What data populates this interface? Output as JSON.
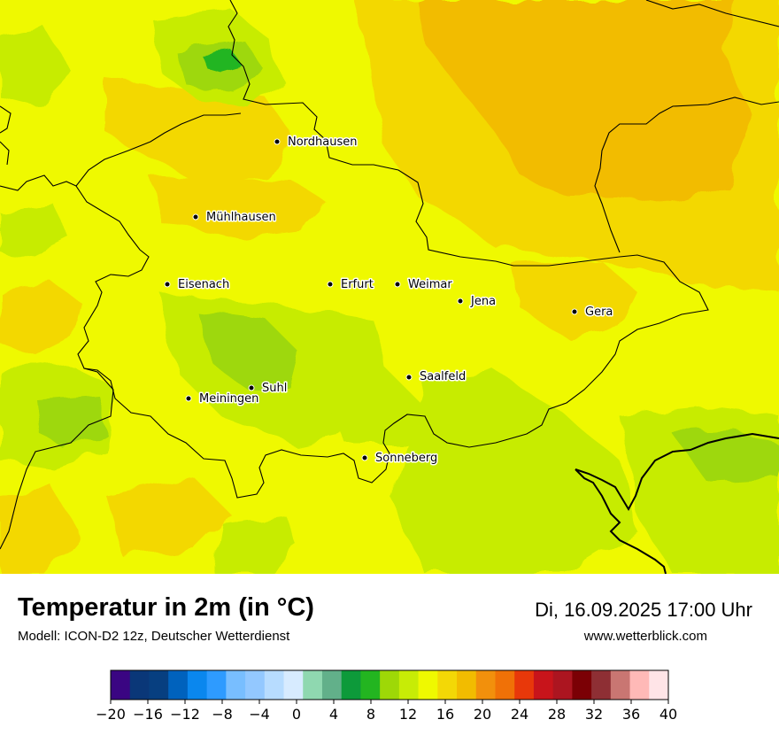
{
  "title": "Temperatur in 2m (in °C)",
  "subtitle": "Modell: ICON-D2 12z, Deutscher Wetterdienst",
  "datetime": "Di, 16.09.2025 17:00 Uhr",
  "website": "www.wetterblick.com",
  "cities": [
    {
      "name": "Nordhausen"
    },
    {
      "name": "Mühlhausen"
    },
    {
      "name": "Eisenach"
    },
    {
      "name": "Erfurt"
    },
    {
      "name": "Weimar"
    },
    {
      "name": "Jena"
    },
    {
      "name": "Gera"
    },
    {
      "name": "Saalfeld"
    },
    {
      "name": "Suhl"
    },
    {
      "name": "Meiningen"
    },
    {
      "name": "Sonneberg"
    }
  ],
  "legend": {
    "min": -20,
    "max": 40,
    "tick_labels": [
      "−20",
      "−16",
      "−12",
      "−8",
      "−4",
      "0",
      "4",
      "8",
      "12",
      "16",
      "20",
      "24",
      "28",
      "32",
      "36",
      "40"
    ],
    "colors": [
      "#3a0582",
      "#0a3778",
      "#073f80",
      "#0062bd",
      "#0a87ee",
      "#2e9bff",
      "#78beff",
      "#93c8ff",
      "#b7dcff",
      "#d7ebff",
      "#8fd8b0",
      "#62b08a",
      "#0d9a3a",
      "#23b520",
      "#9ed807",
      "#c7ec06",
      "#eff900",
      "#f3d806",
      "#f2bc00",
      "#f2900c",
      "#f07107",
      "#e8380a",
      "#c8141b",
      "#ac1520",
      "#7b0005",
      "#8e2f34",
      "#c97672",
      "#ffb9b7",
      "#ffe4e7"
    ]
  }
}
